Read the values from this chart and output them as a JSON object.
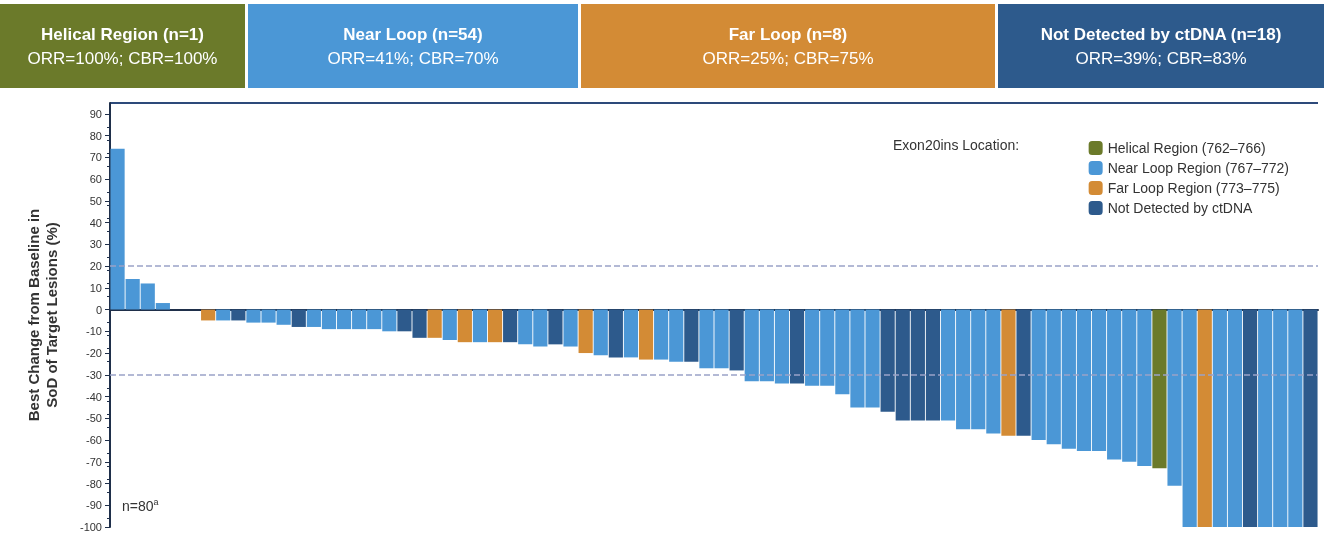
{
  "chart_data": {
    "type": "bar",
    "stacked": true,
    "ylabel": "Best Change from Baseline in\nSoD of Target Lesions (%)",
    "legend_title": "Exon20ins Location:",
    "legend": "top right",
    "tick_labels": "y",
    "grid": false,
    "annotations": [
      "Helical Region (n=1)\nORR=100%; CBR=100%",
      "Near Loop (n=54)\nORR=41%; CBR=70%",
      "Far Loop (n=8)\nORR=25%; CBR=75%",
      "Not Detected by ctDNA (n=18)\nORR=39%; CBR=83%",
      "n=80$^{a}$"
    ],
    "ylim": [
      -100,
      95
    ],
    "yticks": [
      -100,
      -90,
      -80,
      -70,
      -60,
      -50,
      -40,
      -30,
      -20,
      -10,
      0,
      10,
      20,
      30,
      40,
      50,
      60,
      70,
      80,
      90
    ],
    "ref_lines": [
      {
        "axis": "y",
        "value": 20,
        "line_style": "dashed",
        "color": "#9aa3c8"
      },
      {
        "axis": "y",
        "value": -30,
        "line_style": "dashed",
        "color": "#9aa3c8"
      }
    ],
    "categories": [
      null,
      null,
      null,
      null,
      null,
      null,
      null,
      null,
      null,
      null,
      null,
      null,
      null,
      null,
      null,
      null,
      null,
      null,
      null,
      null,
      null,
      null,
      null,
      null,
      null,
      null,
      null,
      null,
      null,
      null,
      null,
      null,
      null,
      null,
      null,
      null,
      null,
      null,
      null,
      null,
      null,
      null,
      null,
      null,
      null,
      null,
      null,
      null,
      null,
      null,
      null,
      null,
      null,
      null,
      null,
      null,
      null,
      null,
      null,
      null,
      null,
      null,
      null,
      null,
      null,
      null,
      null,
      null,
      null,
      null,
      null,
      null,
      null,
      null,
      null,
      null,
      null,
      null,
      null,
      null
    ],
    "series": [
      {
        "name": "Helical Region (762–766)",
        "color": "#6b7a2a",
        "values": [
          null,
          null,
          null,
          null,
          null,
          null,
          null,
          null,
          null,
          null,
          null,
          null,
          null,
          null,
          null,
          null,
          null,
          null,
          null,
          null,
          null,
          null,
          null,
          null,
          null,
          null,
          null,
          null,
          null,
          null,
          null,
          null,
          null,
          null,
          null,
          null,
          null,
          null,
          null,
          null,
          null,
          null,
          null,
          null,
          null,
          null,
          null,
          null,
          null,
          null,
          null,
          null,
          null,
          null,
          null,
          null,
          null,
          null,
          null,
          null,
          null,
          null,
          null,
          null,
          null,
          null,
          null,
          null,
          null,
          -73,
          null,
          null,
          null,
          null,
          null,
          null,
          null,
          null,
          null,
          null
        ]
      },
      {
        "name": "Near Loop Region (767–772)",
        "color": "#4b97d6",
        "values": [
          74,
          14,
          12,
          3,
          null,
          null,
          null,
          -5,
          null,
          -6,
          -6,
          -7,
          null,
          -8,
          -9,
          -9,
          -9,
          -9,
          -10,
          null,
          null,
          null,
          -14,
          null,
          -15,
          null,
          null,
          -16,
          -17,
          null,
          -17,
          null,
          -21,
          null,
          -22,
          null,
          -23,
          -24,
          null,
          -27,
          -27,
          null,
          -33,
          -33,
          -34,
          null,
          -35,
          -35,
          -39,
          -45,
          -45,
          null,
          null,
          null,
          null,
          -51,
          -55,
          -55,
          -57,
          null,
          null,
          -60,
          -62,
          -64,
          -65,
          -65,
          -69,
          -70,
          -72,
          null,
          -81,
          -100,
          null,
          -100,
          -100,
          null,
          -100,
          -100,
          -100,
          null
        ]
      },
      {
        "name": "Far Loop Region (773–775)",
        "color": "#d38b35",
        "values": [
          null,
          null,
          null,
          null,
          null,
          null,
          -5,
          null,
          null,
          null,
          null,
          null,
          null,
          null,
          null,
          null,
          null,
          null,
          null,
          null,
          null,
          -13,
          null,
          -15,
          null,
          -15,
          null,
          null,
          null,
          null,
          null,
          -20,
          null,
          null,
          null,
          -23,
          null,
          null,
          null,
          null,
          null,
          null,
          null,
          null,
          null,
          null,
          null,
          null,
          null,
          null,
          null,
          null,
          null,
          null,
          null,
          null,
          null,
          null,
          null,
          -58,
          null,
          null,
          null,
          null,
          null,
          null,
          null,
          null,
          null,
          null,
          null,
          null,
          -100,
          null,
          null,
          null,
          null,
          null,
          null,
          null
        ]
      },
      {
        "name": "Not Detected by ctDNA",
        "color": "#2d5a8c",
        "values": [
          null,
          null,
          null,
          null,
          null,
          null,
          null,
          null,
          -5,
          null,
          null,
          null,
          -8,
          null,
          null,
          null,
          null,
          null,
          null,
          -10,
          -13,
          null,
          null,
          null,
          null,
          null,
          -15,
          null,
          null,
          -16,
          null,
          null,
          null,
          -22,
          null,
          null,
          null,
          null,
          -24,
          null,
          null,
          -28,
          null,
          null,
          null,
          -34,
          null,
          null,
          null,
          null,
          null,
          -47,
          -51,
          -51,
          -51,
          null,
          null,
          null,
          null,
          null,
          -58,
          null,
          null,
          null,
          null,
          null,
          null,
          null,
          null,
          null,
          null,
          null,
          null,
          null,
          null,
          -100,
          null,
          null,
          null,
          -100
        ]
      }
    ]
  }
}
